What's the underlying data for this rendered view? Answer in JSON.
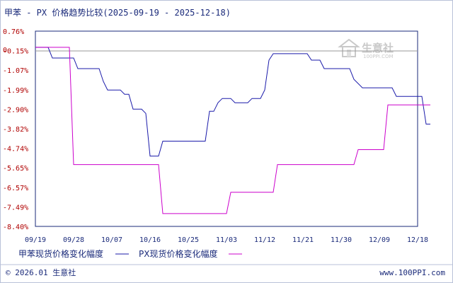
{
  "chart_data": {
    "type": "line",
    "title": "甲苯 - PX 价格趋势比较(2025-09-19 - 2025-12-18)",
    "zero_marker": "0",
    "y_ticks": [
      "0.76%",
      "-0.15%",
      "-1.07%",
      "-1.99%",
      "-2.90%",
      "-3.82%",
      "-4.74%",
      "-5.65%",
      "-6.57%",
      "-7.49%",
      "-8.40%"
    ],
    "ylim": [
      -8.4,
      0.76
    ],
    "x_ticks": [
      "09/19",
      "09/28",
      "10/07",
      "10/16",
      "10/25",
      "11/03",
      "11/12",
      "11/21",
      "11/30",
      "12/09",
      "12/18"
    ],
    "x_range_days": 90,
    "series": [
      {
        "name": "甲苯现货价格变化幅度",
        "color": "#1a1aaa",
        "points": [
          [
            0,
            0.0
          ],
          [
            3,
            0.0
          ],
          [
            4,
            -0.5
          ],
          [
            9,
            -0.5
          ],
          [
            10,
            -1.0
          ],
          [
            15,
            -1.0
          ],
          [
            16,
            -1.6
          ],
          [
            17,
            -2.0
          ],
          [
            20,
            -2.0
          ],
          [
            21,
            -2.2
          ],
          [
            22,
            -2.2
          ],
          [
            23,
            -2.9
          ],
          [
            25,
            -2.9
          ],
          [
            26,
            -3.1
          ],
          [
            27,
            -5.1
          ],
          [
            29,
            -5.1
          ],
          [
            30,
            -4.4
          ],
          [
            40,
            -4.4
          ],
          [
            41,
            -3.0
          ],
          [
            42,
            -3.0
          ],
          [
            43,
            -2.6
          ],
          [
            44,
            -2.4
          ],
          [
            46,
            -2.4
          ],
          [
            47,
            -2.6
          ],
          [
            50,
            -2.6
          ],
          [
            51,
            -2.4
          ],
          [
            53,
            -2.4
          ],
          [
            54,
            -2.0
          ],
          [
            55,
            -0.6
          ],
          [
            56,
            -0.3
          ],
          [
            64,
            -0.3
          ],
          [
            65,
            -0.6
          ],
          [
            67,
            -0.6
          ],
          [
            68,
            -1.0
          ],
          [
            74,
            -1.0
          ],
          [
            75,
            -1.5
          ],
          [
            77,
            -1.9
          ],
          [
            84,
            -1.9
          ],
          [
            85,
            -2.3
          ],
          [
            90,
            -2.3
          ],
          [
            91,
            -2.3
          ],
          [
            92,
            -3.6
          ],
          [
            93,
            -3.6
          ]
        ]
      },
      {
        "name": "PX现货价格变化幅度",
        "color": "#cc00cc",
        "points": [
          [
            0,
            0.0
          ],
          [
            8,
            0.0
          ],
          [
            9,
            -5.5
          ],
          [
            29,
            -5.5
          ],
          [
            30,
            -7.8
          ],
          [
            45,
            -7.8
          ],
          [
            46,
            -6.8
          ],
          [
            56,
            -6.8
          ],
          [
            57,
            -5.5
          ],
          [
            75,
            -5.5
          ],
          [
            76,
            -4.8
          ],
          [
            82,
            -4.8
          ],
          [
            83,
            -2.7
          ],
          [
            93,
            -2.7
          ]
        ]
      }
    ],
    "grid": false,
    "legend": "bottom-left"
  },
  "watermark": {
    "brand": "生意社",
    "url_text": "100PPI.COM"
  },
  "footer": {
    "copyright": "© 2026.01 生意社",
    "site": "www.100PPI.com"
  }
}
